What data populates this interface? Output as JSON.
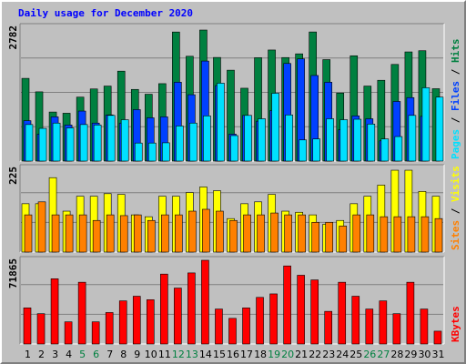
{
  "chart_data": {
    "type": "bar",
    "title": "Daily usage for December 2020",
    "categories": [
      "1",
      "2",
      "3",
      "4",
      "5",
      "6",
      "7",
      "8",
      "9",
      "10",
      "11",
      "12",
      "13",
      "14",
      "15",
      "16",
      "17",
      "18",
      "19",
      "20",
      "21",
      "22",
      "23",
      "24",
      "25",
      "26",
      "27",
      "28",
      "29",
      "30",
      "31"
    ],
    "weekend_days": [
      "5",
      "6",
      "12",
      "13",
      "19",
      "20",
      "26",
      "27"
    ],
    "colors": {
      "hits": "#008040",
      "files": "#0040ff",
      "pages": "#00e0ff",
      "visits": "#ffff00",
      "sites": "#ff8000",
      "kbytes": "#ff0000",
      "weekday_label": "#000000",
      "weekend_label": "#008040",
      "title": "#0000ff"
    },
    "panels": [
      {
        "id": "hits-files-pages",
        "ymax_label": "2782",
        "ymax": 2782,
        "legend": [
          {
            "label": "Pages",
            "color": "#00e0ff"
          },
          {
            "label": "Files",
            "color": "#0040ff"
          },
          {
            "label": "Hits",
            "color": "#008040"
          }
        ],
        "series": [
          {
            "name": "Hits",
            "values": [
              1720,
              1440,
              1020,
              995,
              1330,
              1500,
              1560,
              1870,
              1490,
              1390,
              1610,
              2684,
              2180,
              2725,
              2155,
              1890,
              1515,
              2150,
              2310,
              2153,
              2230,
              2685,
              2110,
              1415,
              2190,
              1560,
              1680,
              2010,
              2270,
              2295,
              1505
            ]
          },
          {
            "name": "Files",
            "values": [
              840,
              560,
              920,
              750,
              1040,
              790,
              960,
              790,
              1070,
              900,
              920,
              1640,
              1380,
              2080,
              1570,
              560,
              950,
              830,
              1050,
              2030,
              2125,
              1780,
              1640,
              650,
              940,
              880,
              420,
              1240,
              1320,
              930,
              0
            ]
          },
          {
            "name": "Pages",
            "values": [
              760,
              680,
              790,
              690,
              760,
              750,
              950,
              860,
              375,
              375,
              380,
              730,
              790,
              940,
              1620,
              530,
              950,
              880,
              1410,
              960,
              440,
              460,
              880,
              860,
              870,
              770,
              460,
              510,
              950,
              1525,
              1330
            ]
          }
        ]
      },
      {
        "id": "visits-sites",
        "ymax_label": "225",
        "ymax": 225,
        "legend": [
          {
            "label": "Sites",
            "color": "#ff8000"
          },
          {
            "label": "Visits",
            "color": "#ffff00"
          }
        ],
        "series": [
          {
            "name": "Visits",
            "values": [
              130,
              130,
              200,
              110,
              150,
              150,
              157,
              155,
              100,
              95,
              150,
              150,
              160,
              175,
              165,
              90,
              130,
              135,
              155,
              110,
              107,
              100,
              75,
              85,
              130,
              150,
              180,
              220,
              220,
              163,
              150
            ]
          },
          {
            "name": "Sites",
            "values": [
              100,
              135,
              100,
              100,
              100,
              85,
              100,
              98,
              100,
              85,
              100,
              100,
              110,
              115,
              110,
              85,
              100,
              100,
              105,
              100,
              100,
              80,
              80,
              70,
              100,
              100,
              95,
              95,
              95,
              95,
              90
            ]
          }
        ]
      },
      {
        "id": "kbytes",
        "ymax_label": "71865",
        "ymax": 71865,
        "legend": [
          {
            "label": "KBytes",
            "color": "#ff0000"
          }
        ],
        "series": [
          {
            "name": "KBytes",
            "values": [
              31000,
              26000,
              56000,
              19000,
              53000,
              19000,
              27000,
              37000,
              41000,
              38000,
              60000,
              48000,
              61000,
              71865,
              30000,
              22000,
              31000,
              40000,
              43000,
              67000,
              59000,
              55000,
              28000,
              53000,
              41000,
              30000,
              37000,
              26000,
              53000,
              30000,
              11000
            ]
          }
        ]
      }
    ]
  }
}
